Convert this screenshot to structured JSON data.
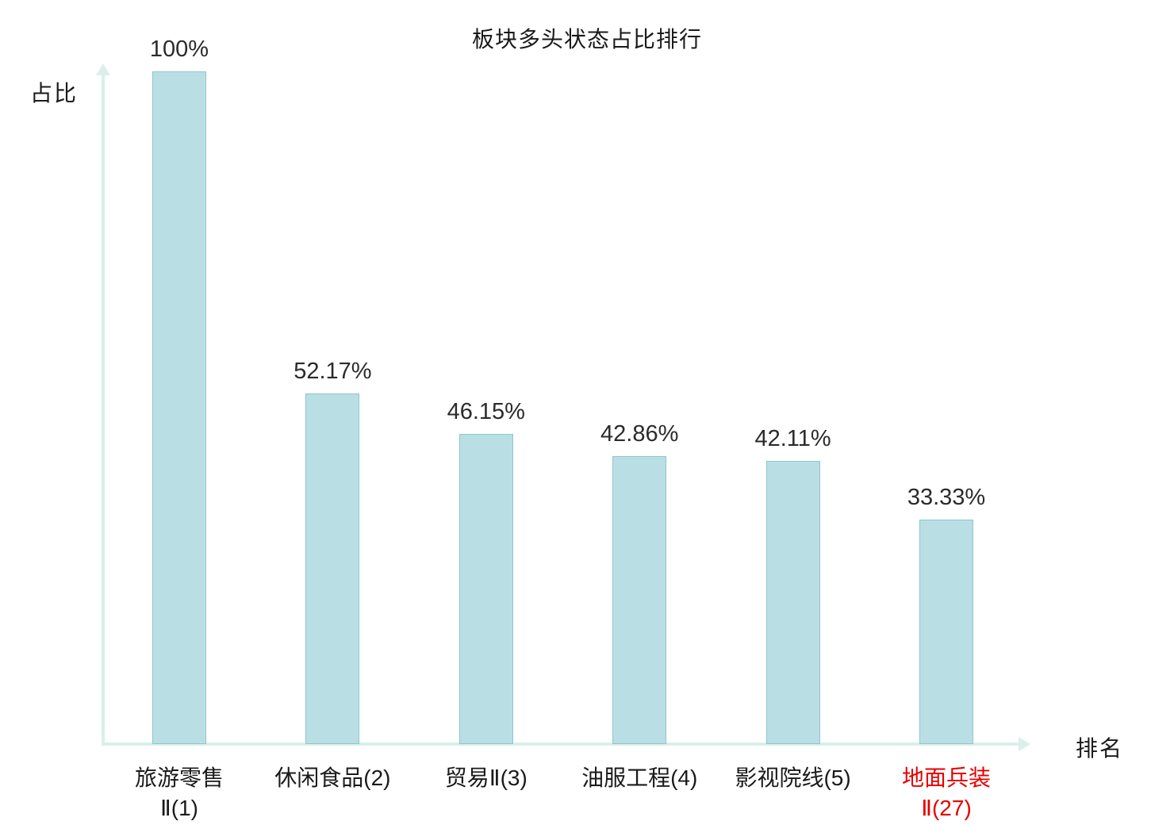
{
  "chart_data": {
    "type": "bar",
    "title": "板块多头状态占比排行",
    "xlabel": "排名",
    "ylabel": "占比",
    "ylim": [
      0,
      100
    ],
    "grid": false,
    "categories": [
      {
        "lines": [
          "旅游零售",
          "Ⅱ(1)"
        ],
        "highlight": false
      },
      {
        "lines": [
          "休闲食品(2)"
        ],
        "highlight": false
      },
      {
        "lines": [
          "贸易Ⅱ(3)"
        ],
        "highlight": false
      },
      {
        "lines": [
          "油服工程(4)"
        ],
        "highlight": false
      },
      {
        "lines": [
          "影视院线(5)"
        ],
        "highlight": false
      },
      {
        "lines": [
          "地面兵装",
          "Ⅱ(27)"
        ],
        "highlight": true
      }
    ],
    "values": [
      100,
      52.17,
      46.15,
      42.86,
      42.11,
      33.33
    ],
    "value_labels": [
      "100%",
      "52.17%",
      "46.15%",
      "42.86%",
      "42.11%",
      "33.33%"
    ],
    "colors": {
      "bar_fill": "#b9dfe4",
      "bar_border": "#8fc6cd",
      "axis": "#d9f0ea",
      "text": "#1a1a1a",
      "highlight_text": "#e60000"
    }
  }
}
